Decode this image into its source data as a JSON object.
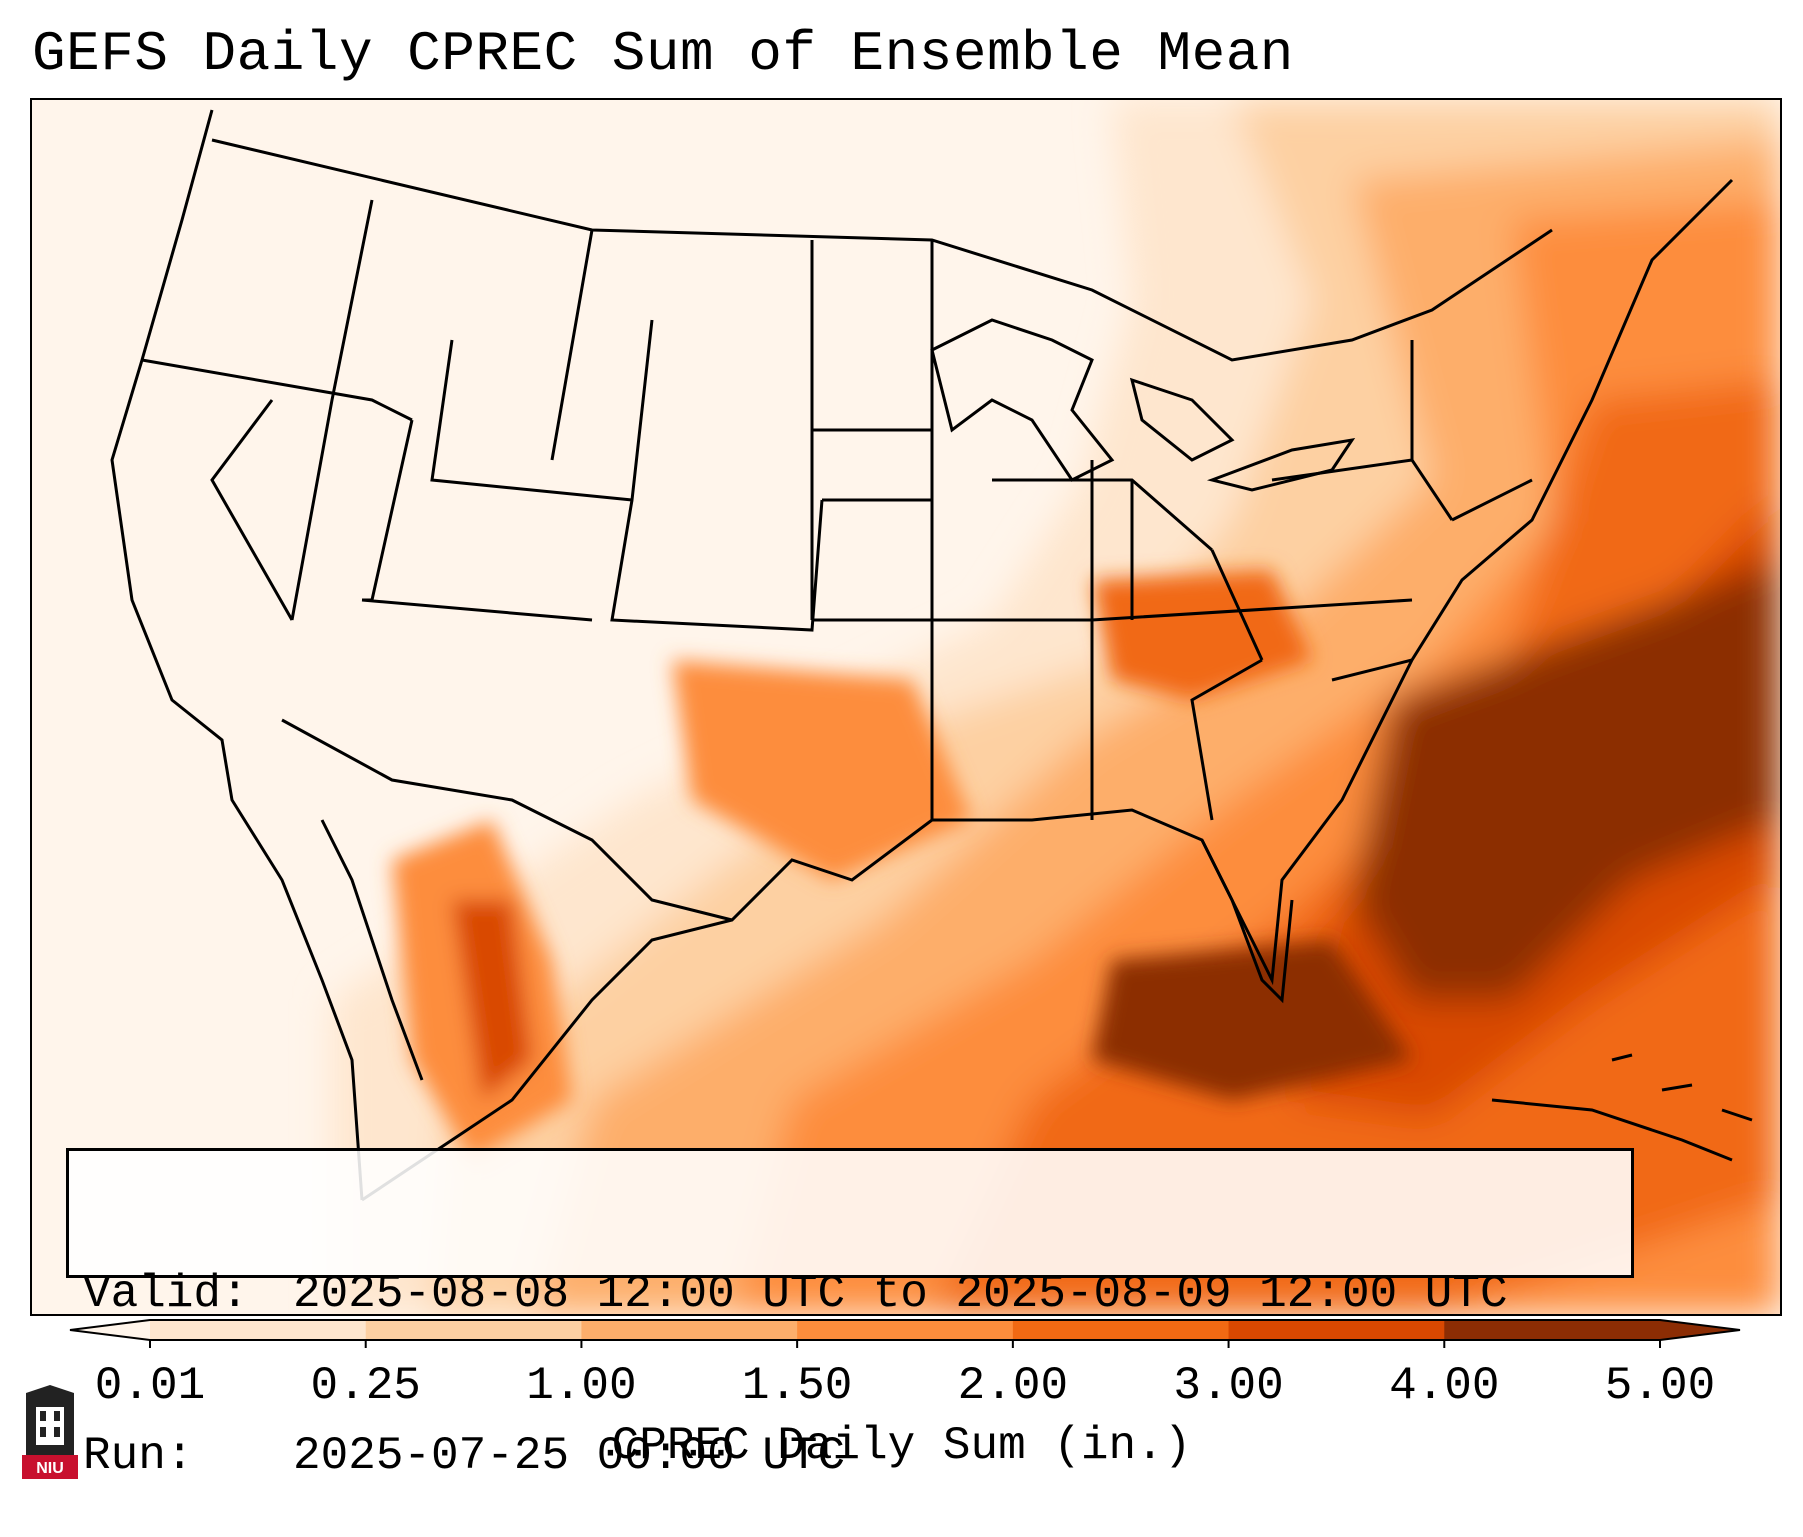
{
  "title": "GEFS Daily CPREC Sum of Ensemble Mean",
  "info": {
    "valid_label": "Valid:",
    "valid_value": "2025-08-08 12:00 UTC to 2025-08-09 12:00 UTC",
    "run_label": "Run:",
    "run_value": "2025-07-25 00:00 UTC"
  },
  "colorbar": {
    "label": "CPREC Daily Sum (in.)",
    "ticks": [
      "0.01",
      "0.25",
      "1.00",
      "1.50",
      "2.00",
      "3.00",
      "4.00",
      "5.00"
    ],
    "colors": [
      "#fff5eb",
      "#fee6ce",
      "#fdd0a2",
      "#fdae6b",
      "#fd8d3c",
      "#f16913",
      "#d94801",
      "#8c2d04"
    ]
  },
  "logo": {
    "text": "NIU",
    "color": "#c8102e"
  },
  "map": {
    "region": "Continental United States, Mexico and Caribbean",
    "heaviest_area": "Southeast US coast and western Atlantic",
    "colors": {
      "ocean_background": "#fff5ec",
      "boundary_stroke": "#000000"
    }
  }
}
